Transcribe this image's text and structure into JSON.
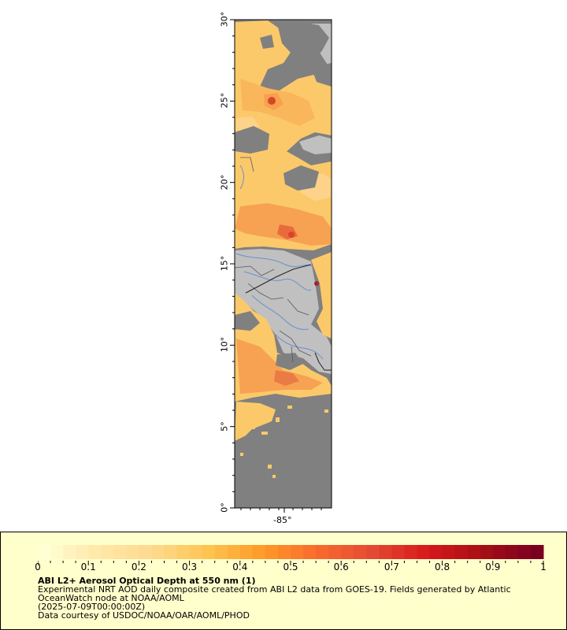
{
  "map": {
    "lat_axis": {
      "min": 0,
      "max": 30,
      "ticks": [
        "0°",
        "5°",
        "10°",
        "15°",
        "20°",
        "25°",
        "30°"
      ]
    },
    "lon_axis": {
      "ticks": [
        "-85°"
      ]
    },
    "colors": {
      "no_data": "#808080",
      "land": "#c0c0c0",
      "country_border": "#222222",
      "state_border": "#555566",
      "river": "#6b8fcf"
    }
  },
  "legend": {
    "colorbar": {
      "min": 0,
      "max": 1,
      "steps": 40,
      "tick_labels": [
        "0",
        "0.1",
        "0.2",
        "0.3",
        "0.4",
        "0.5",
        "0.6",
        "0.7",
        "0.8",
        "0.9",
        "1"
      ],
      "color_stops": [
        "#ffffd4",
        "#ffe8a8",
        "#fed98e",
        "#fec44f",
        "#fe9929",
        "#f86a2e",
        "#e34a33",
        "#d7191c",
        "#a50f15",
        "#7a0021"
      ]
    },
    "title": "ABI L2+ Aerosol Optical Depth at 550 nm (1)",
    "description_line1": "Experimental NRT AOD daily composite created from ABI L2 data from GOES-19. Fields generated by Atlantic",
    "description_line2": "OceanWatch node at NOAA/AOML",
    "time": "(2025-07-09T00:00:00Z)",
    "credit": "Data courtesy of USDOC/NOAA/OAR/AOML/PHOD",
    "background": "#ffffcc"
  }
}
